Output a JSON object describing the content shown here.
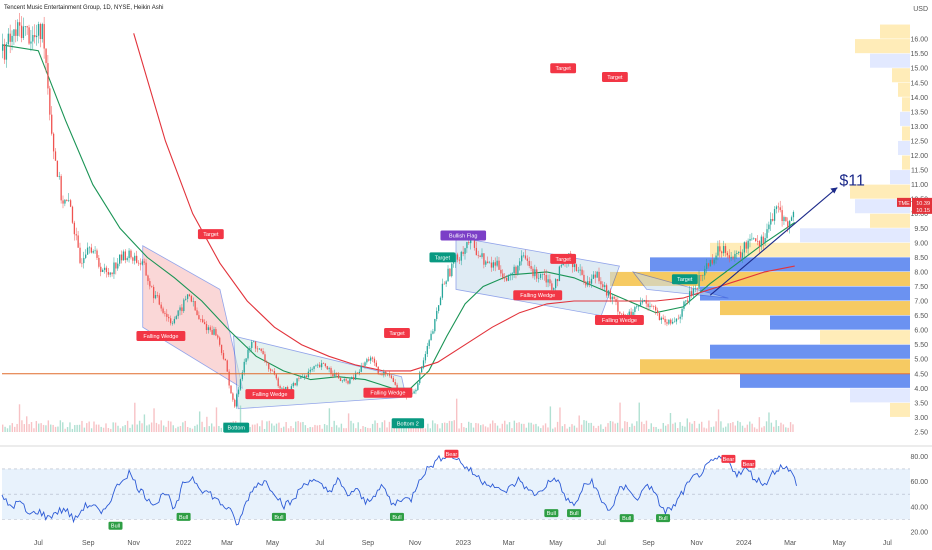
{
  "chart_data": [
    {
      "type": "candlestick",
      "title": "Tencent Music Entertainment Group, 1D, NYSE, Heikin Ashi",
      "ylabel": "USD",
      "ylim": [
        2.5,
        17.0
      ],
      "y_ticks": [
        2.5,
        3.0,
        3.5,
        4.0,
        4.5,
        5.0,
        5.5,
        6.0,
        6.5,
        7.0,
        7.5,
        8.0,
        8.5,
        9.0,
        9.5,
        10.0,
        10.5,
        11.0,
        11.5,
        12.0,
        12.5,
        13.0,
        13.5,
        14.0,
        14.5,
        15.0,
        15.5,
        16.0
      ],
      "y_tick_labels": [
        "2.50",
        "3.00",
        "3.50",
        "4.00",
        "4.50",
        "5.00",
        "5.50",
        "6.00",
        "6.50",
        "7.00",
        "7.50",
        "8.00",
        "8.50",
        "9.00",
        "9.50",
        "10.00",
        "10.50",
        "11.00",
        "11.50",
        "12.00",
        "12.50",
        "13.00",
        "13.50",
        "14.00",
        "14.50",
        "15.00",
        "15.50",
        "16.00"
      ],
      "x_ticks": [
        {
          "t": 0.04,
          "label": "Jul"
        },
        {
          "t": 0.095,
          "label": "Sep"
        },
        {
          "t": 0.145,
          "label": "Nov"
        },
        {
          "t": 0.2,
          "label": "2022"
        },
        {
          "t": 0.248,
          "label": "Mar"
        },
        {
          "t": 0.298,
          "label": "May"
        },
        {
          "t": 0.35,
          "label": "Jul"
        },
        {
          "t": 0.403,
          "label": "Sep"
        },
        {
          "t": 0.455,
          "label": "Nov"
        },
        {
          "t": 0.508,
          "label": "2023"
        },
        {
          "t": 0.558,
          "label": "Mar"
        },
        {
          "t": 0.61,
          "label": "May"
        },
        {
          "t": 0.66,
          "label": "Jul"
        },
        {
          "t": 0.712,
          "label": "Sep"
        },
        {
          "t": 0.765,
          "label": "Nov"
        },
        {
          "t": 0.817,
          "label": "2024"
        },
        {
          "t": 0.868,
          "label": "Mar"
        },
        {
          "t": 0.922,
          "label": "May"
        },
        {
          "t": 0.975,
          "label": "Jul"
        }
      ],
      "price_path": [
        [
          0.0,
          15.6
        ],
        [
          0.02,
          16.4
        ],
        [
          0.035,
          16.0
        ],
        [
          0.045,
          16.3
        ],
        [
          0.055,
          12.5
        ],
        [
          0.065,
          10.5
        ],
        [
          0.075,
          10.2
        ],
        [
          0.085,
          8.3
        ],
        [
          0.095,
          9.1
        ],
        [
          0.105,
          8.3
        ],
        [
          0.115,
          7.9
        ],
        [
          0.125,
          8.3
        ],
        [
          0.135,
          8.6
        ],
        [
          0.145,
          8.5
        ],
        [
          0.155,
          8.2
        ],
        [
          0.165,
          7.3
        ],
        [
          0.175,
          6.8
        ],
        [
          0.185,
          6.3
        ],
        [
          0.195,
          6.6
        ],
        [
          0.205,
          7.3
        ],
        [
          0.215,
          6.4
        ],
        [
          0.225,
          6.1
        ],
        [
          0.235,
          5.9
        ],
        [
          0.245,
          4.9
        ],
        [
          0.255,
          3.3
        ],
        [
          0.265,
          4.8
        ],
        [
          0.275,
          5.6
        ],
        [
          0.285,
          5.2
        ],
        [
          0.295,
          4.6
        ],
        [
          0.305,
          4.1
        ],
        [
          0.315,
          3.9
        ],
        [
          0.325,
          4.3
        ],
        [
          0.335,
          4.5
        ],
        [
          0.345,
          4.7
        ],
        [
          0.355,
          4.8
        ],
        [
          0.365,
          4.5
        ],
        [
          0.375,
          4.2
        ],
        [
          0.385,
          4.3
        ],
        [
          0.395,
          4.7
        ],
        [
          0.405,
          5.1
        ],
        [
          0.415,
          4.4
        ],
        [
          0.425,
          4.6
        ],
        [
          0.435,
          3.9
        ],
        [
          0.445,
          3.7
        ],
        [
          0.455,
          4.0
        ],
        [
          0.465,
          5.1
        ],
        [
          0.475,
          6.1
        ],
        [
          0.485,
          7.6
        ],
        [
          0.495,
          8.2
        ],
        [
          0.505,
          8.7
        ],
        [
          0.515,
          9.1
        ],
        [
          0.525,
          8.6
        ],
        [
          0.535,
          8.2
        ],
        [
          0.545,
          8.3
        ],
        [
          0.555,
          7.7
        ],
        [
          0.565,
          8.1
        ],
        [
          0.575,
          8.5
        ],
        [
          0.585,
          7.9
        ],
        [
          0.595,
          8.0
        ],
        [
          0.605,
          7.5
        ],
        [
          0.615,
          8.1
        ],
        [
          0.625,
          8.5
        ],
        [
          0.635,
          8.0
        ],
        [
          0.645,
          7.6
        ],
        [
          0.655,
          8.0
        ],
        [
          0.665,
          7.3
        ],
        [
          0.675,
          6.9
        ],
        [
          0.685,
          6.4
        ],
        [
          0.695,
          6.6
        ],
        [
          0.705,
          7.0
        ],
        [
          0.715,
          6.9
        ],
        [
          0.725,
          6.3
        ],
        [
          0.735,
          6.2
        ],
        [
          0.745,
          6.5
        ],
        [
          0.755,
          7.1
        ],
        [
          0.765,
          7.6
        ],
        [
          0.775,
          8.2
        ],
        [
          0.785,
          8.6
        ],
        [
          0.795,
          8.9
        ],
        [
          0.805,
          8.4
        ],
        [
          0.815,
          8.7
        ],
        [
          0.825,
          9.3
        ],
        [
          0.835,
          9.0
        ],
        [
          0.845,
          9.7
        ],
        [
          0.855,
          10.2
        ],
        [
          0.865,
          9.5
        ],
        [
          0.873,
          10.3
        ]
      ],
      "series": [
        {
          "name": "",
          "color": "#1a9455",
          "values": [
            [
              0.0,
              15.8
            ],
            [
              0.04,
              15.6
            ],
            [
              0.07,
              13.2
            ],
            [
              0.1,
              11.0
            ],
            [
              0.13,
              9.5
            ],
            [
              0.16,
              8.5
            ],
            [
              0.19,
              7.8
            ],
            [
              0.22,
              7.0
            ],
            [
              0.25,
              6.0
            ],
            [
              0.28,
              5.1
            ],
            [
              0.31,
              4.6
            ],
            [
              0.34,
              4.3
            ],
            [
              0.37,
              4.4
            ],
            [
              0.4,
              4.3
            ],
            [
              0.43,
              4.0
            ],
            [
              0.45,
              4.0
            ],
            [
              0.47,
              4.6
            ],
            [
              0.49,
              5.8
            ],
            [
              0.51,
              6.9
            ],
            [
              0.53,
              7.5
            ],
            [
              0.56,
              7.9
            ],
            [
              0.6,
              8.0
            ],
            [
              0.63,
              7.8
            ],
            [
              0.66,
              7.4
            ],
            [
              0.69,
              7.0
            ],
            [
              0.72,
              6.6
            ],
            [
              0.75,
              6.8
            ],
            [
              0.78,
              7.6
            ],
            [
              0.81,
              8.3
            ],
            [
              0.84,
              9.0
            ],
            [
              0.873,
              9.7
            ]
          ]
        },
        {
          "name": "",
          "color": "#e2333b",
          "values": [
            [
              0.145,
              16.2
            ],
            [
              0.18,
              12.5
            ],
            [
              0.21,
              10.0
            ],
            [
              0.24,
              8.3
            ],
            [
              0.27,
              7.0
            ],
            [
              0.3,
              6.1
            ],
            [
              0.33,
              5.5
            ],
            [
              0.36,
              5.1
            ],
            [
              0.39,
              4.8
            ],
            [
              0.42,
              4.6
            ],
            [
              0.45,
              4.6
            ],
            [
              0.48,
              4.9
            ],
            [
              0.51,
              5.5
            ],
            [
              0.54,
              6.1
            ],
            [
              0.57,
              6.6
            ],
            [
              0.6,
              6.9
            ],
            [
              0.63,
              7.0
            ],
            [
              0.66,
              7.0
            ],
            [
              0.69,
              7.0
            ],
            [
              0.72,
              7.0
            ],
            [
              0.75,
              7.1
            ],
            [
              0.78,
              7.4
            ],
            [
              0.81,
              7.7
            ],
            [
              0.84,
              8.0
            ],
            [
              0.873,
              8.2
            ]
          ]
        }
      ],
      "horizontal_line": 4.5,
      "price_axis_markers": [
        {
          "label": "TME",
          "value": 10.39,
          "text": "10.39",
          "color": "#e2333b"
        },
        {
          "label": "",
          "value": 10.15,
          "text": "10.15",
          "color": "#e2333b"
        }
      ],
      "projection_label": "$11",
      "projection_line": [
        [
          0.78,
          7.2
        ],
        [
          0.92,
          10.9
        ]
      ],
      "annotations": [
        {
          "text": "Target",
          "t": 0.23,
          "v": 9.3,
          "color": "#f23645"
        },
        {
          "text": "Falling Wedge",
          "t": 0.175,
          "v": 5.8,
          "color": "#f23645"
        },
        {
          "text": "Falling Wedge",
          "t": 0.295,
          "v": 3.8,
          "color": "#f23645"
        },
        {
          "text": "Bottom",
          "t": 0.258,
          "v": 2.65,
          "color": "#089981"
        },
        {
          "text": "Target",
          "t": 0.435,
          "v": 5.9,
          "color": "#f23645"
        },
        {
          "text": "Falling Wedge",
          "t": 0.425,
          "v": 3.85,
          "color": "#f23645"
        },
        {
          "text": "Bottom 2",
          "t": 0.447,
          "v": 2.8,
          "color": "#089981"
        },
        {
          "text": "Bullish Flag",
          "t": 0.508,
          "v": 9.25,
          "color": "#7b3fc7"
        },
        {
          "text": "Target",
          "t": 0.485,
          "v": 8.5,
          "color": "#089981"
        },
        {
          "text": "Target",
          "t": 0.618,
          "v": 15.0,
          "color": "#f23645"
        },
        {
          "text": "Target",
          "t": 0.618,
          "v": 8.45,
          "color": "#f23645"
        },
        {
          "text": "Falling Wedge",
          "t": 0.59,
          "v": 7.2,
          "color": "#f23645"
        },
        {
          "text": "Target",
          "t": 0.675,
          "v": 14.7,
          "color": "#f23645"
        },
        {
          "text": "Falling Wedge",
          "t": 0.68,
          "v": 6.35,
          "color": "#f23645"
        },
        {
          "text": "Target",
          "t": 0.752,
          "v": 7.75,
          "color": "#089981"
        }
      ]
    },
    {
      "type": "line",
      "title": "",
      "ylim": [
        20,
        85
      ],
      "y_ticks": [
        20,
        40,
        60,
        80
      ],
      "y_tick_labels": [
        "20.00",
        "40.00",
        "60.00",
        "80.00"
      ],
      "band": [
        30,
        70
      ],
      "values": [
        [
          0.0,
          47
        ],
        [
          0.01,
          40
        ],
        [
          0.02,
          44
        ],
        [
          0.03,
          33
        ],
        [
          0.04,
          37
        ],
        [
          0.05,
          31
        ],
        [
          0.06,
          36
        ],
        [
          0.07,
          38
        ],
        [
          0.08,
          29
        ],
        [
          0.09,
          40
        ],
        [
          0.1,
          42
        ],
        [
          0.11,
          33
        ],
        [
          0.12,
          47
        ],
        [
          0.13,
          60
        ],
        [
          0.14,
          67
        ],
        [
          0.15,
          55
        ],
        [
          0.16,
          47
        ],
        [
          0.17,
          42
        ],
        [
          0.18,
          53
        ],
        [
          0.19,
          36
        ],
        [
          0.2,
          59
        ],
        [
          0.21,
          63
        ],
        [
          0.22,
          54
        ],
        [
          0.23,
          50
        ],
        [
          0.24,
          43
        ],
        [
          0.25,
          38
        ],
        [
          0.26,
          25
        ],
        [
          0.27,
          46
        ],
        [
          0.28,
          58
        ],
        [
          0.29,
          60
        ],
        [
          0.3,
          52
        ],
        [
          0.31,
          41
        ],
        [
          0.32,
          44
        ],
        [
          0.33,
          56
        ],
        [
          0.34,
          62
        ],
        [
          0.35,
          57
        ],
        [
          0.36,
          52
        ],
        [
          0.37,
          61
        ],
        [
          0.38,
          49
        ],
        [
          0.39,
          54
        ],
        [
          0.4,
          43
        ],
        [
          0.41,
          50
        ],
        [
          0.42,
          56
        ],
        [
          0.43,
          41
        ],
        [
          0.44,
          47
        ],
        [
          0.45,
          45
        ],
        [
          0.46,
          63
        ],
        [
          0.47,
          71
        ],
        [
          0.48,
          77
        ],
        [
          0.49,
          82
        ],
        [
          0.5,
          79
        ],
        [
          0.51,
          72
        ],
        [
          0.52,
          66
        ],
        [
          0.53,
          60
        ],
        [
          0.54,
          58
        ],
        [
          0.55,
          51
        ],
        [
          0.56,
          55
        ],
        [
          0.57,
          62
        ],
        [
          0.58,
          52
        ],
        [
          0.59,
          50
        ],
        [
          0.6,
          58
        ],
        [
          0.61,
          63
        ],
        [
          0.62,
          48
        ],
        [
          0.63,
          40
        ],
        [
          0.64,
          55
        ],
        [
          0.65,
          61
        ],
        [
          0.66,
          44
        ],
        [
          0.67,
          37
        ],
        [
          0.68,
          53
        ],
        [
          0.69,
          56
        ],
        [
          0.7,
          44
        ],
        [
          0.71,
          60
        ],
        [
          0.72,
          48
        ],
        [
          0.73,
          36
        ],
        [
          0.74,
          40
        ],
        [
          0.75,
          52
        ],
        [
          0.76,
          62
        ],
        [
          0.77,
          67
        ],
        [
          0.78,
          74
        ],
        [
          0.79,
          79
        ],
        [
          0.8,
          75
        ],
        [
          0.81,
          66
        ],
        [
          0.82,
          70
        ],
        [
          0.83,
          62
        ],
        [
          0.84,
          58
        ],
        [
          0.85,
          68
        ],
        [
          0.86,
          73
        ],
        [
          0.87,
          66
        ],
        [
          0.875,
          59
        ]
      ],
      "labels": [
        {
          "text": "Bull",
          "t": 0.125,
          "v": 25,
          "color": "#2e9e44"
        },
        {
          "text": "Bull",
          "t": 0.2,
          "v": 32,
          "color": "#2e9e44"
        },
        {
          "text": "Bull",
          "t": 0.305,
          "v": 32,
          "color": "#2e9e44"
        },
        {
          "text": "Bull",
          "t": 0.435,
          "v": 32,
          "color": "#2e9e44"
        },
        {
          "text": "Bear",
          "t": 0.495,
          "v": 82,
          "color": "#f23645"
        },
        {
          "text": "Bull",
          "t": 0.605,
          "v": 35,
          "color": "#2e9e44"
        },
        {
          "text": "Bull",
          "t": 0.63,
          "v": 35,
          "color": "#2e9e44"
        },
        {
          "text": "Bull",
          "t": 0.688,
          "v": 31,
          "color": "#2e9e44"
        },
        {
          "text": "Bull",
          "t": 0.728,
          "v": 31,
          "color": "#2e9e44"
        },
        {
          "text": "Bear",
          "t": 0.8,
          "v": 78,
          "color": "#f23645"
        },
        {
          "text": "Bear",
          "t": 0.822,
          "v": 74,
          "color": "#f23645"
        }
      ]
    }
  ]
}
